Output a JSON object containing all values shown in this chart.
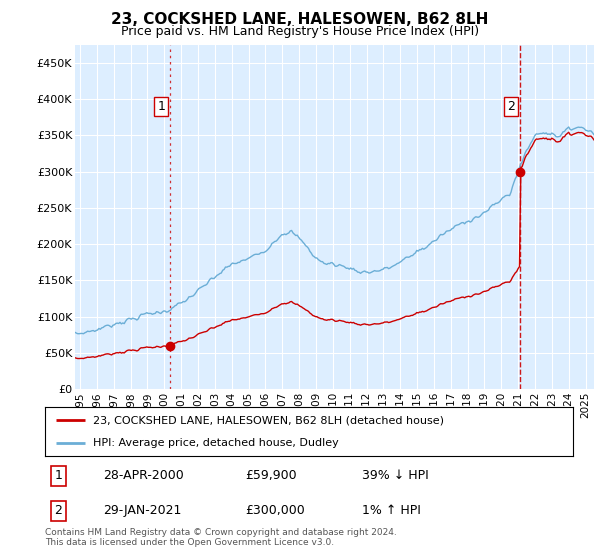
{
  "title": "23, COCKSHED LANE, HALESOWEN, B62 8LH",
  "subtitle": "Price paid vs. HM Land Registry's House Price Index (HPI)",
  "ylabel_ticks": [
    "£0",
    "£50K",
    "£100K",
    "£150K",
    "£200K",
    "£250K",
    "£300K",
    "£350K",
    "£400K",
    "£450K"
  ],
  "ytick_values": [
    0,
    50000,
    100000,
    150000,
    200000,
    250000,
    300000,
    350000,
    400000,
    450000
  ],
  "ylim": [
    0,
    475000
  ],
  "xlim_start": 1994.7,
  "xlim_end": 2025.5,
  "sale1_x": 2000.32,
  "sale1_y": 59900,
  "sale1_label": "1",
  "sale2_x": 2021.08,
  "sale2_y": 300000,
  "sale2_label": "2",
  "hpi_color": "#6baed6",
  "price_color": "#cc0000",
  "vline1_color": "#cc0000",
  "vline2_color": "#cc0000",
  "background_color": "#ddeeff",
  "grid_color": "#ffffff",
  "legend_label_price": "23, COCKSHED LANE, HALESOWEN, B62 8LH (detached house)",
  "legend_label_hpi": "HPI: Average price, detached house, Dudley",
  "table_row1": [
    "1",
    "28-APR-2000",
    "£59,900",
    "39% ↓ HPI"
  ],
  "table_row2": [
    "2",
    "29-JAN-2021",
    "£300,000",
    "1% ↑ HPI"
  ],
  "footer": "Contains HM Land Registry data © Crown copyright and database right 2024.\nThis data is licensed under the Open Government Licence v3.0.",
  "xtick_years": [
    1995,
    1996,
    1997,
    1998,
    1999,
    2000,
    2001,
    2002,
    2003,
    2004,
    2005,
    2006,
    2007,
    2008,
    2009,
    2010,
    2011,
    2012,
    2013,
    2014,
    2015,
    2016,
    2017,
    2018,
    2019,
    2020,
    2021,
    2022,
    2023,
    2024,
    2025
  ],
  "hpi_anchors_x": [
    1994.7,
    1995,
    1996,
    1997,
    1998,
    1999,
    2000,
    2001,
    2002,
    2003,
    2004,
    2005,
    2006,
    2007,
    2007.5,
    2008,
    2008.5,
    2009,
    2009.5,
    2010,
    2010.5,
    2011,
    2011.5,
    2012,
    2012.5,
    2013,
    2013.5,
    2014,
    2014.5,
    2015,
    2015.5,
    2016,
    2016.5,
    2017,
    2017.5,
    2018,
    2018.5,
    2019,
    2019.5,
    2020,
    2020.5,
    2021,
    2021.5,
    2022,
    2022.5,
    2023,
    2023.5,
    2024,
    2024.5,
    2025,
    2025.5
  ],
  "hpi_anchors_y": [
    76000,
    77000,
    82000,
    90000,
    96000,
    104000,
    107000,
    118000,
    135000,
    155000,
    172000,
    180000,
    192000,
    215000,
    217000,
    208000,
    195000,
    181000,
    173000,
    173000,
    170000,
    167000,
    163000,
    161000,
    163000,
    165000,
    169000,
    175000,
    182000,
    190000,
    196000,
    204000,
    213000,
    220000,
    227000,
    233000,
    237000,
    243000,
    252000,
    262000,
    270000,
    300000,
    330000,
    350000,
    355000,
    352000,
    350000,
    358000,
    363000,
    358000,
    355000
  ]
}
